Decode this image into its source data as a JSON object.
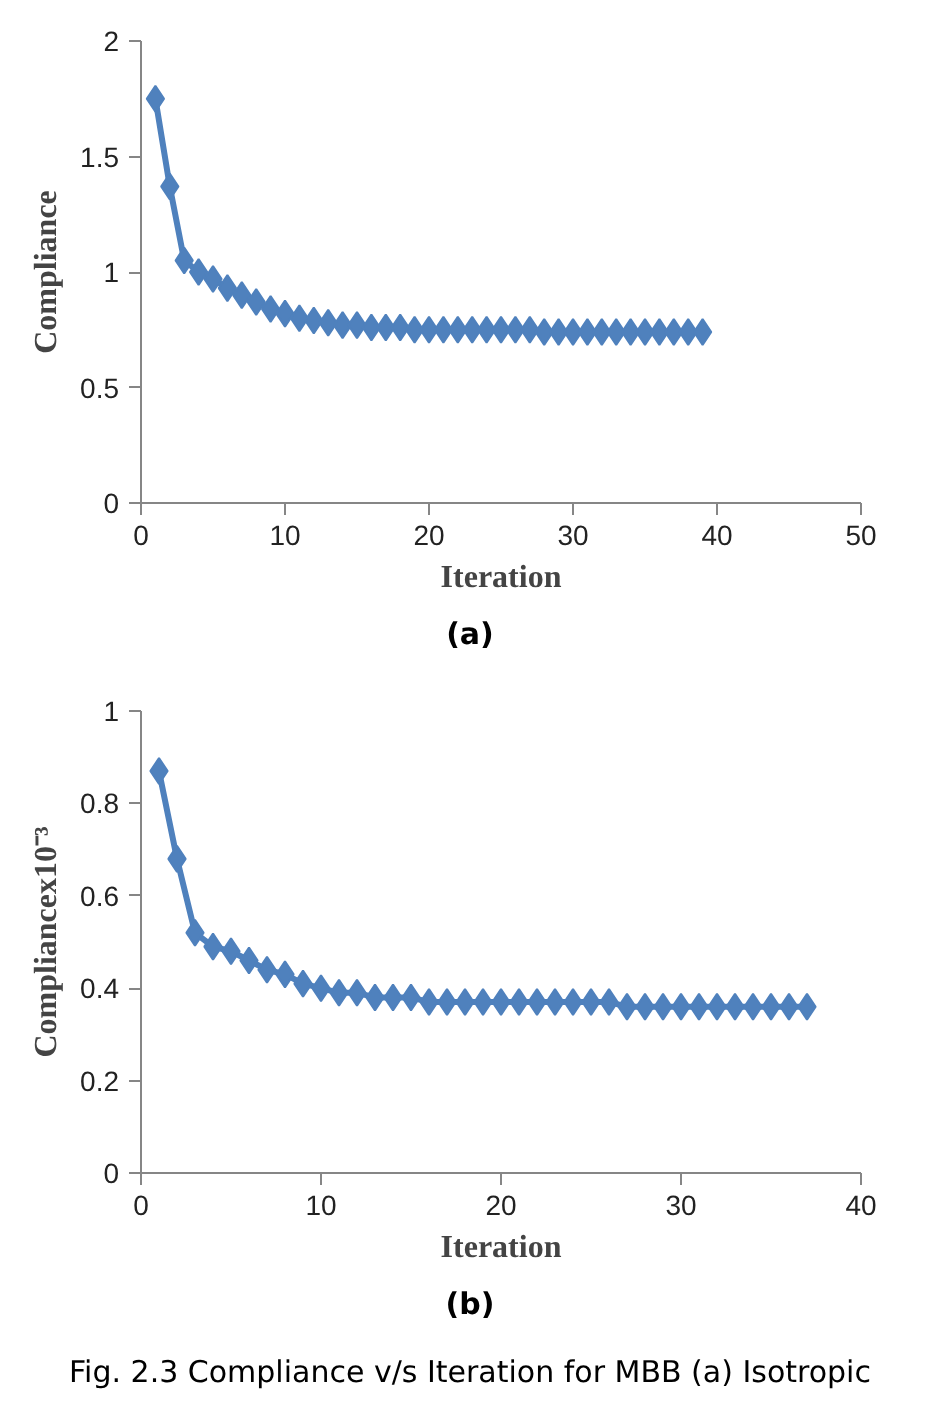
{
  "chart_data": [
    {
      "type": "line",
      "xlabel": "Iteration",
      "ylabel": "Compliance",
      "x": [
        1,
        2,
        3,
        4,
        5,
        6,
        7,
        8,
        9,
        10,
        11,
        12,
        13,
        14,
        15,
        16,
        17,
        18,
        19,
        20,
        21,
        22,
        23,
        24,
        25,
        26,
        27,
        28,
        29,
        30,
        31,
        32,
        33,
        34,
        35,
        36,
        37,
        38,
        39
      ],
      "series": [
        {
          "color": "#4f81bd",
          "values": [
            1.75,
            1.37,
            1.05,
            1.0,
            0.97,
            0.93,
            0.9,
            0.87,
            0.84,
            0.82,
            0.8,
            0.79,
            0.78,
            0.77,
            0.77,
            0.76,
            0.76,
            0.76,
            0.75,
            0.75,
            0.75,
            0.75,
            0.75,
            0.75,
            0.75,
            0.75,
            0.75,
            0.74,
            0.74,
            0.74,
            0.74,
            0.74,
            0.74,
            0.74,
            0.74,
            0.74,
            0.74,
            0.74,
            0.74
          ]
        }
      ],
      "xlim": [
        0,
        50
      ],
      "xticks": [
        0,
        10,
        20,
        30,
        40,
        50
      ],
      "ylim": [
        0,
        2
      ],
      "yticks": [
        0,
        0.5,
        1,
        1.5,
        2
      ],
      "grid": false,
      "marker": "diamond",
      "line_style": "solid",
      "annotations": [
        "(a)"
      ]
    },
    {
      "type": "line",
      "xlabel": "Iteration",
      "ylabel": "Compliancex10⁻³",
      "x": [
        1,
        2,
        3,
        4,
        5,
        6,
        7,
        8,
        9,
        10,
        11,
        12,
        13,
        14,
        15,
        16,
        17,
        18,
        19,
        20,
        21,
        22,
        23,
        24,
        25,
        26,
        27,
        28,
        29,
        30,
        31,
        32,
        33,
        34,
        35,
        36,
        37
      ],
      "series": [
        {
          "color": "#4f81bd",
          "values": [
            0.87,
            0.68,
            0.52,
            0.49,
            0.48,
            0.46,
            0.44,
            0.43,
            0.41,
            0.4,
            0.39,
            0.39,
            0.38,
            0.38,
            0.38,
            0.37,
            0.37,
            0.37,
            0.37,
            0.37,
            0.37,
            0.37,
            0.37,
            0.37,
            0.37,
            0.37,
            0.36,
            0.36,
            0.36,
            0.36,
            0.36,
            0.36,
            0.36,
            0.36,
            0.36,
            0.36,
            0.36
          ]
        }
      ],
      "xlim": [
        0,
        40
      ],
      "xticks": [
        0,
        10,
        20,
        30,
        40
      ],
      "ylim": [
        0,
        1
      ],
      "yticks": [
        0,
        0.2,
        0.4,
        0.6,
        0.8,
        1
      ],
      "grid": false,
      "marker": "diamond",
      "line_style": "solid",
      "annotations": [
        "(b)",
        "Fig. 2.3 Compliance v/s Iteration for MBB (a) Isotropic"
      ]
    }
  ]
}
